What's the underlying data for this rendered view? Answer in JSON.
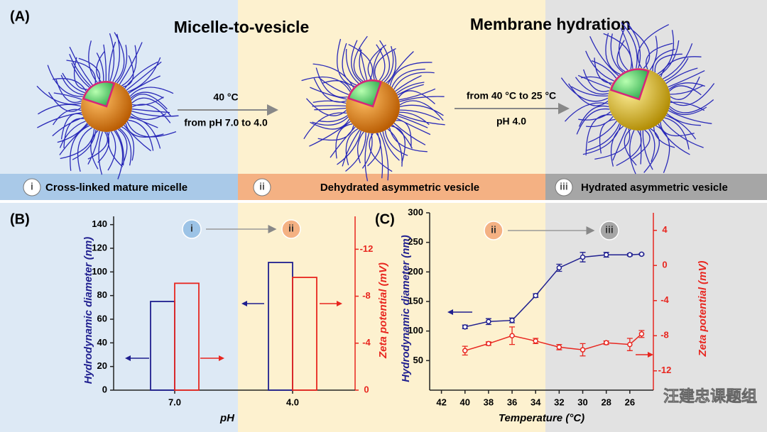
{
  "panel_a": {
    "label": "(A)",
    "heading_1": "Micelle-to-vesicle",
    "heading_2": "Membrane hydration",
    "step_1_line_1": "40 °C",
    "step_1_line_2": "from pH 7.0 to 4.0",
    "step_2_line_1": "from 40 °C to 25 °C",
    "step_2_line_2": "pH 4.0",
    "stages": [
      {
        "marker": "i",
        "name": "Cross-linked mature micelle"
      },
      {
        "marker": "ii",
        "name": "Dehydrated asymmetric vesicle"
      },
      {
        "marker": "iii",
        "name": "Hydrated asymmetric vesicle"
      }
    ]
  },
  "watermark": "汪建忠课题组",
  "chart_data": [
    {
      "type": "bar",
      "panel_label": "(B)",
      "stage_markers": [
        "i",
        "ii"
      ],
      "categories": [
        "7.0",
        "4.0"
      ],
      "x_label": "pH",
      "y_label": "Hydrodynamic diameter (nm)",
      "y2_label": "Zeta potential (mV)",
      "ylim": [
        0,
        147
      ],
      "yticks": [
        0,
        20,
        40,
        60,
        80,
        100,
        120,
        140
      ],
      "y2lim": [
        0,
        -14.8
      ],
      "y2ticks": [
        0,
        -4,
        -8,
        -12
      ],
      "series": [
        {
          "color": "#1f1f8f",
          "values": [
            75,
            108
          ]
        },
        {
          "color": "#e8261f",
          "axis": "y2",
          "values": [
            -9.1,
            -9.6
          ]
        }
      ]
    },
    {
      "type": "line",
      "panel_label": "(C)",
      "stage_markers": [
        "ii",
        "iii"
      ],
      "x": [
        40,
        38,
        36,
        34,
        32,
        30,
        28,
        26,
        25
      ],
      "x_label": "Temperature (°C)",
      "y_label": "Hydrodynamic diameter (nm)",
      "y2_label": "Zeta potential (mV)",
      "xlim": [
        43,
        24
      ],
      "xticks": [
        42,
        40,
        38,
        36,
        34,
        32,
        30,
        28,
        26
      ],
      "ylim": [
        0,
        300
      ],
      "yticks": [
        50,
        100,
        150,
        200,
        250,
        300
      ],
      "y2lim": [
        -14.2,
        6
      ],
      "y2ticks": [
        -12,
        -8,
        -4,
        0,
        4
      ],
      "series": [
        {
          "color": "#1f1f8f",
          "values": [
            107,
            116,
            118,
            160,
            207,
            225,
            229,
            229,
            230
          ],
          "errors": [
            3,
            5,
            4,
            3,
            6,
            8,
            4,
            2,
            1
          ]
        },
        {
          "color": "#e8261f",
          "axis": "y2",
          "values": [
            -9.7,
            -8.9,
            -8.0,
            -8.6,
            -9.3,
            -9.6,
            -8.8,
            -9.0,
            -7.8
          ],
          "errors": [
            0.5,
            0.2,
            1.0,
            0.3,
            0.3,
            0.7,
            0.2,
            0.7,
            0.4
          ]
        }
      ]
    }
  ]
}
